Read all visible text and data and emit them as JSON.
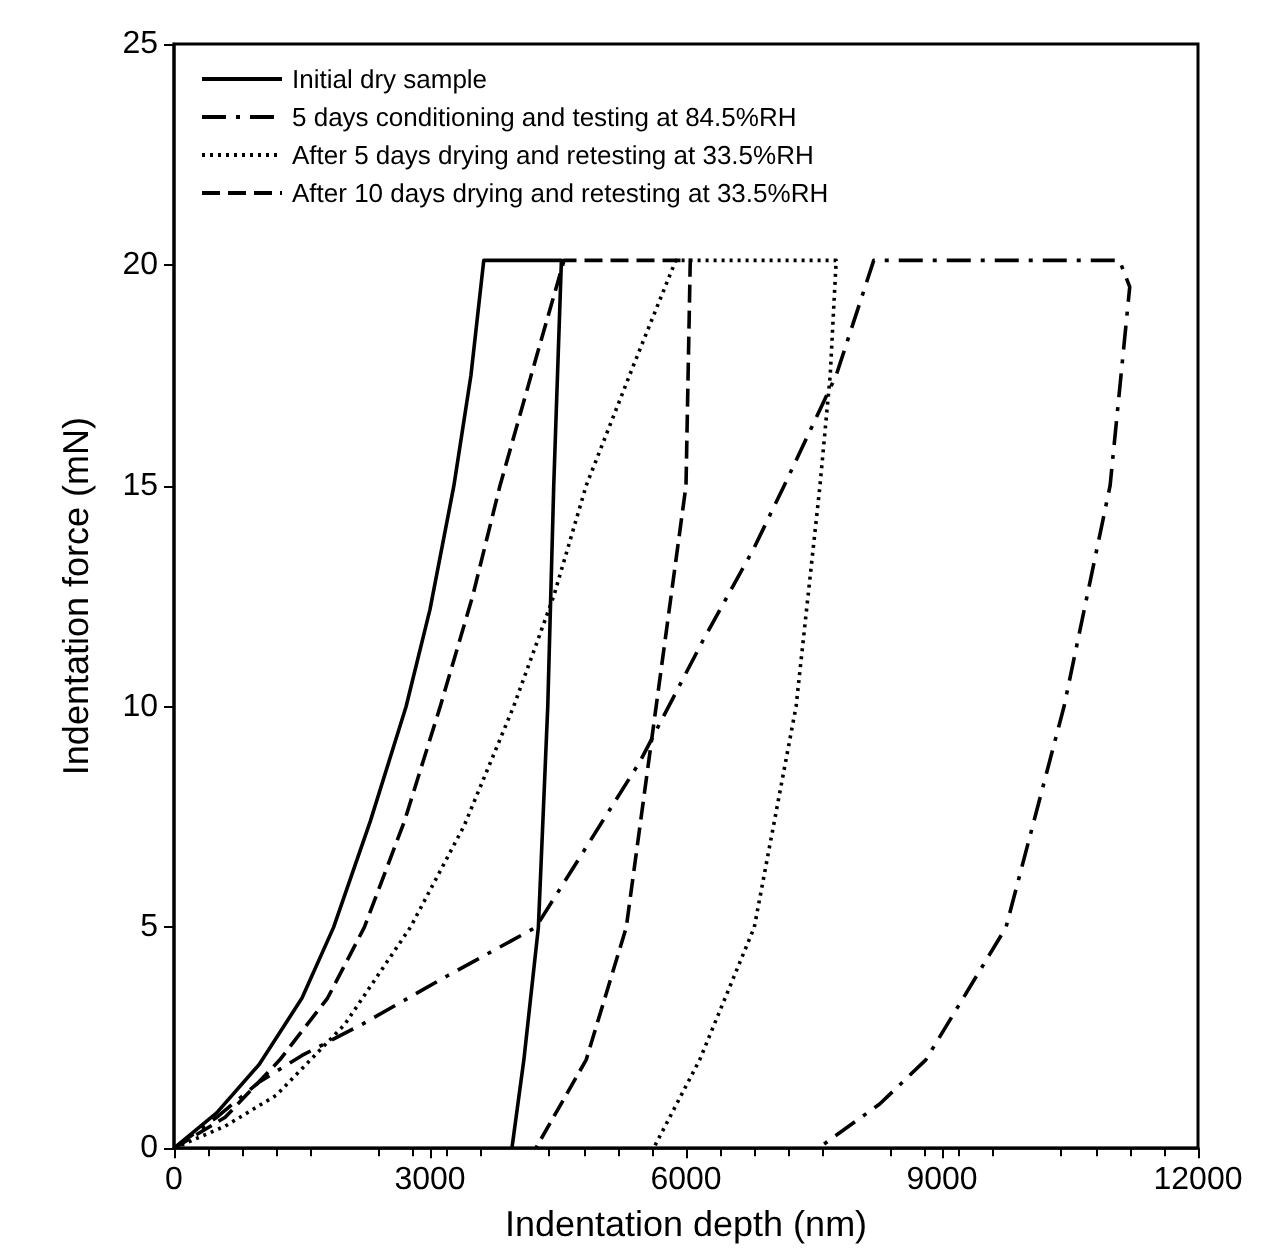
{
  "chart_data": {
    "type": "line",
    "xlabel": "Indentation depth (nm)",
    "ylabel": "Indentation force (mN)",
    "xlim": [
      0,
      12000
    ],
    "xticks": [
      0,
      3000,
      6000,
      9000,
      12000
    ],
    "ylim": [
      0,
      25
    ],
    "yticks": [
      0,
      5,
      10,
      15,
      20,
      25
    ],
    "grid": false,
    "legend": "top left",
    "marker": "none",
    "series": [
      {
        "name": "Initial dry sample",
        "color": "#000000",
        "line_style": "solid",
        "x": [
          0,
          500,
          1000,
          1500,
          1870,
          2300,
          2720,
          3000,
          3280,
          3480,
          3630,
          4540,
          4450,
          4380,
          4270,
          4100,
          3960
        ],
        "values": [
          0,
          0.8,
          1.9,
          3.4,
          5,
          7.4,
          10,
          12.2,
          15,
          17.5,
          20.1,
          20.1,
          15,
          10,
          5,
          2,
          0
        ]
      },
      {
        "name": "5 days conditioning and testing at 84.5%RH",
        "color": "#000000",
        "line_style": "dashdot",
        "x": [
          0,
          500,
          1000,
          1500,
          2200,
          3200,
          4240,
          5460,
          6200,
          6800,
          7150,
          7760,
          8200,
          11080,
          11200,
          10970,
          10430,
          9750,
          8810,
          8270,
          7550
        ],
        "values": [
          0,
          0.7,
          1.5,
          2.1,
          2.8,
          3.9,
          5,
          8.75,
          11.5,
          13.6,
          15,
          17.5,
          20.1,
          20.1,
          19.5,
          15,
          10,
          5,
          2,
          1,
          0
        ]
      },
      {
        "name": "After 5 days drying and retesting at 33.5%RH",
        "color": "#000000",
        "line_style": "dotted",
        "x": [
          0,
          600,
          1200,
          2000,
          2770,
          3400,
          3980,
          4450,
          4830,
          5400,
          5880,
          7760,
          7690,
          7570,
          7290,
          6800,
          6160,
          5620
        ],
        "values": [
          0,
          0.5,
          1.2,
          2.8,
          5,
          7.3,
          10,
          12.5,
          15,
          17.8,
          20.1,
          20.1,
          17.5,
          15,
          10,
          5,
          2,
          0
        ]
      },
      {
        "name": "After 10 days drying and retesting at 33.5%RH",
        "color": "#000000",
        "line_style": "dashed",
        "x": [
          0,
          600,
          1240,
          1800,
          2230,
          2700,
          3120,
          3500,
          3820,
          4200,
          4570,
          6050,
          6000,
          5650,
          5300,
          4830,
          4240
        ],
        "values": [
          0,
          0.7,
          2,
          3.4,
          5,
          7.4,
          10,
          12.5,
          15,
          17.6,
          20.1,
          20.1,
          15,
          10,
          5,
          2,
          0
        ]
      }
    ]
  }
}
